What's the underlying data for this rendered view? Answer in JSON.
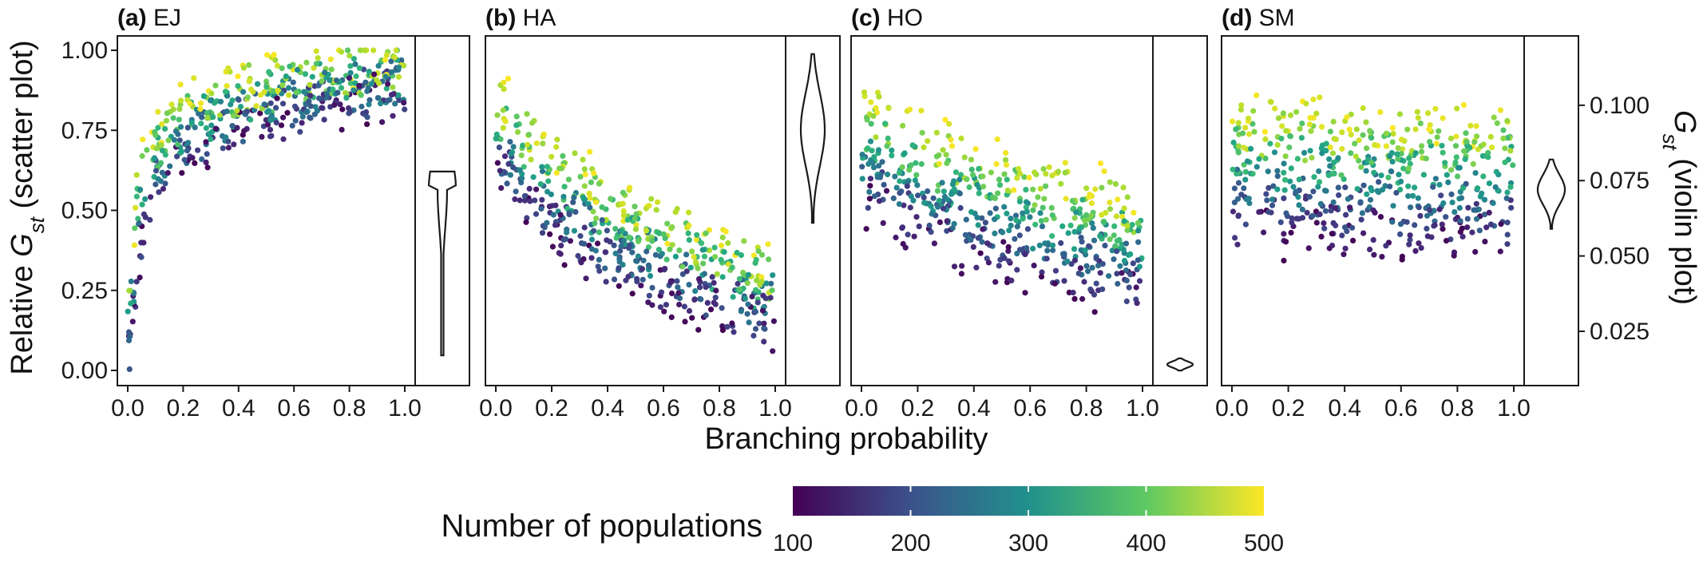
{
  "figure": {
    "shared_xlabel": "Branching probability",
    "left_ylabel": "Relative G_st (scatter plot)",
    "right_ylabel": "G_st (violin plot)",
    "legend": {
      "title": "Number of populations",
      "ticks": [
        "100",
        "200",
        "300",
        "400",
        "500"
      ],
      "range": [
        100,
        500
      ],
      "colormap": "viridis",
      "colors": [
        "#440154",
        "#3b528b",
        "#21918c",
        "#5ec962",
        "#fde725"
      ]
    }
  },
  "chart_data": [
    {
      "type": "scatter",
      "panel": "a",
      "label_bold": "(a)",
      "label_text": "EJ",
      "xlabel": "Branching probability",
      "ylabel": "Relative G_st (scatter plot)",
      "xlim": [
        0,
        1
      ],
      "ylim": [
        0,
        1
      ],
      "xticks": [
        "0.0",
        "0.2",
        "0.4",
        "0.6",
        "0.8",
        "1.0"
      ],
      "yticks": [
        "0.00",
        "0.25",
        "0.50",
        "0.75",
        "1.00"
      ],
      "trend": "saturating increase",
      "x": [
        0.0,
        0.02,
        0.04,
        0.06,
        0.08,
        0.1,
        0.15,
        0.2,
        0.3,
        0.4,
        0.5,
        0.6,
        0.7,
        0.8,
        0.9,
        1.0
      ],
      "y_low_populations": [
        0.0,
        0.18,
        0.28,
        0.36,
        0.42,
        0.48,
        0.56,
        0.61,
        0.66,
        0.7,
        0.73,
        0.76,
        0.78,
        0.8,
        0.82,
        0.83
      ],
      "y_high_populations": [
        0.32,
        0.52,
        0.62,
        0.68,
        0.72,
        0.76,
        0.8,
        0.83,
        0.87,
        0.9,
        0.92,
        0.94,
        0.95,
        0.96,
        0.97,
        0.98
      ],
      "violin": {
        "min": 0.017,
        "max": 0.078,
        "peak": 0.072
      }
    },
    {
      "type": "scatter",
      "panel": "b",
      "label_bold": "(b)",
      "label_text": "HA",
      "xlim": [
        0,
        1
      ],
      "ylim": [
        0,
        1
      ],
      "xticks": [
        "0.0",
        "0.2",
        "0.4",
        "0.6",
        "0.8",
        "1.0"
      ],
      "trend": "decrease",
      "x": [
        0.0,
        0.1,
        0.2,
        0.3,
        0.4,
        0.5,
        0.6,
        0.7,
        0.8,
        0.9,
        1.0
      ],
      "y_low_populations": [
        0.6,
        0.46,
        0.38,
        0.31,
        0.26,
        0.22,
        0.19,
        0.16,
        0.13,
        0.11,
        0.08
      ],
      "y_high_populations": [
        0.88,
        0.78,
        0.7,
        0.63,
        0.57,
        0.52,
        0.48,
        0.44,
        0.4,
        0.36,
        0.32
      ],
      "violin": {
        "min": 0.061,
        "max": 0.117,
        "peak": 0.092
      }
    },
    {
      "type": "scatter",
      "panel": "c",
      "label_bold": "(c)",
      "label_text": "HO",
      "xlim": [
        0,
        1
      ],
      "ylim": [
        0,
        1
      ],
      "xticks": [
        "0.0",
        "0.2",
        "0.4",
        "0.6",
        "0.8",
        "1.0"
      ],
      "trend": "gentle decrease",
      "x": [
        0.0,
        0.1,
        0.2,
        0.3,
        0.4,
        0.5,
        0.6,
        0.7,
        0.8,
        0.9,
        1.0
      ],
      "y_low_populations": [
        0.45,
        0.4,
        0.36,
        0.32,
        0.29,
        0.26,
        0.23,
        0.21,
        0.19,
        0.17,
        0.15
      ],
      "y_high_populations": [
        0.85,
        0.8,
        0.76,
        0.72,
        0.69,
        0.66,
        0.63,
        0.6,
        0.58,
        0.56,
        0.55
      ],
      "violin": {
        "min": 0.012,
        "max": 0.016,
        "peak": 0.014
      }
    },
    {
      "type": "scatter",
      "panel": "d",
      "label_bold": "(d)",
      "label_text": "SM",
      "xlim": [
        0,
        1
      ],
      "ylim": [
        0,
        1
      ],
      "xticks": [
        "0.0",
        "0.2",
        "0.4",
        "0.6",
        "0.8",
        "1.0"
      ],
      "trend": "flat",
      "x": [
        0.0,
        0.2,
        0.4,
        0.6,
        0.8,
        1.0
      ],
      "y_low_populations": [
        0.36,
        0.35,
        0.35,
        0.34,
        0.34,
        0.33
      ],
      "y_high_populations": [
        0.8,
        0.8,
        0.79,
        0.79,
        0.78,
        0.78
      ],
      "violin": {
        "min": 0.059,
        "max": 0.082,
        "peak": 0.072
      },
      "right_axis": {
        "ylim_value": [
          0.007,
          0.123
        ],
        "yticks": [
          "0.025",
          "0.050",
          "0.075",
          "0.100"
        ],
        "ytick_values": [
          0.025,
          0.05,
          0.075,
          0.1
        ]
      }
    }
  ]
}
